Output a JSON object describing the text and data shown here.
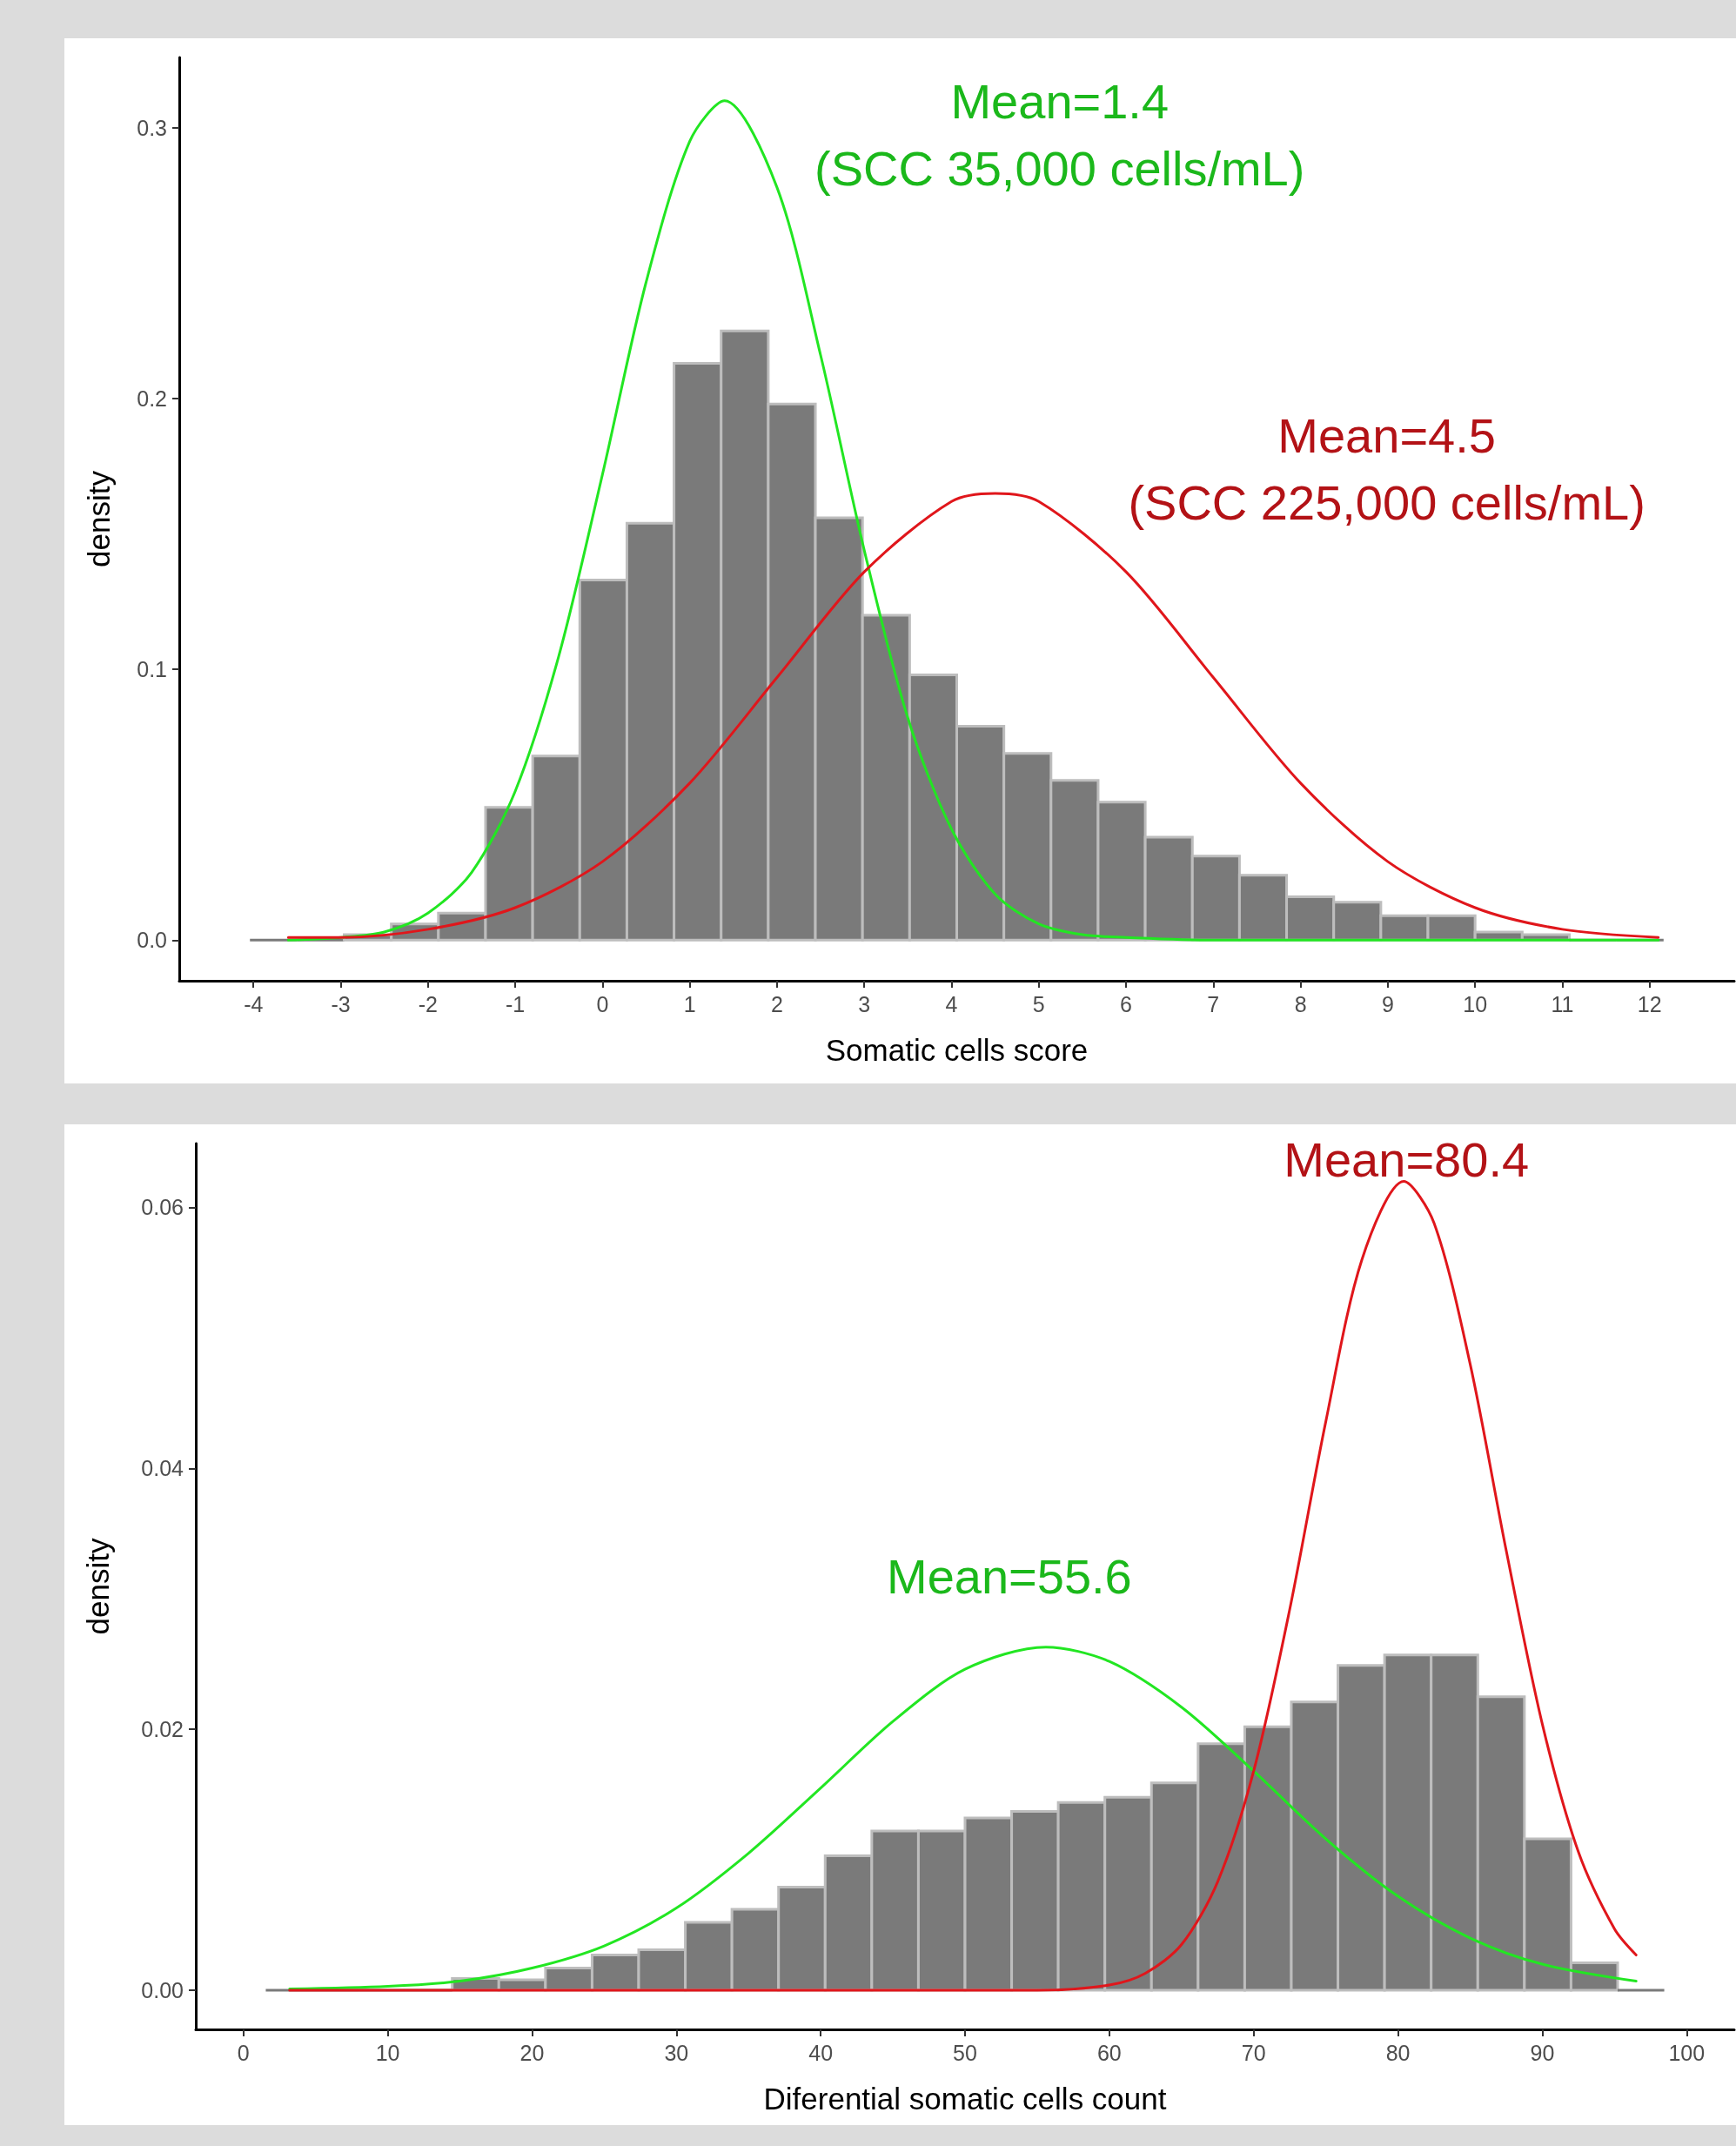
{
  "chart_data": [
    {
      "type": "histogram",
      "xlabel": "Somatic cells score",
      "ylabel": "density",
      "xlim": [
        -4.85,
        12.97
      ],
      "ylim": [
        -0.015,
        0.326
      ],
      "xticks": [
        -4,
        -3,
        -2,
        -1,
        0,
        1,
        2,
        3,
        4,
        5,
        6,
        7,
        8,
        9,
        10,
        11,
        12
      ],
      "yticks": [
        {
          "value": 0,
          "label": "0.0"
        },
        {
          "value": 0.1,
          "label": "0.1"
        },
        {
          "value": 0.2,
          "label": "0.2"
        },
        {
          "value": 0.3,
          "label": "0.3"
        }
      ],
      "series": [
        {
          "color": "#7a7a7a",
          "bins": [
            -4.04,
            -3.5,
            -2.96,
            -2.42,
            -1.88,
            -1.34,
            -0.8,
            -0.26,
            0.28,
            0.82,
            1.36,
            1.9,
            2.44,
            2.98,
            3.52,
            4.06,
            4.6,
            5.14,
            5.68,
            6.22,
            6.76,
            7.3,
            7.84,
            8.38,
            8.92,
            9.46,
            10.0,
            10.54,
            11.08,
            11.62,
            12.16
          ],
          "values": [
            0,
            0,
            0.002,
            0.006,
            0.01,
            0.049,
            0.068,
            0.133,
            0.154,
            0.213,
            0.225,
            0.198,
            0.156,
            0.12,
            0.098,
            0.079,
            0.069,
            0.059,
            0.051,
            0.038,
            0.031,
            0.024,
            0.016,
            0.014,
            0.009,
            0.009,
            0.003,
            0.002,
            0,
            0
          ]
        },
        {
          "type": "line",
          "color": "#22e622",
          "x": [
            -3.6,
            -3,
            -2.5,
            -2,
            -1.5,
            -1,
            -0.5,
            0,
            0.5,
            1,
            1.4,
            2,
            2.5,
            3,
            3.5,
            4,
            4.5,
            5,
            5.5,
            6,
            7,
            8,
            10,
            12.1
          ],
          "values": [
            0,
            0.001,
            0.003,
            0.01,
            0.025,
            0.055,
            0.105,
            0.172,
            0.243,
            0.295,
            0.31,
            0.278,
            0.216,
            0.144,
            0.082,
            0.041,
            0.017,
            0.006,
            0.002,
            0.001,
            0,
            0,
            0,
            0
          ]
        },
        {
          "type": "line",
          "color": "#e0161b",
          "x": [
            -3.6,
            -3,
            -2,
            -1,
            0,
            1,
            2,
            3,
            4,
            4.5,
            5,
            6,
            7,
            8,
            9,
            10,
            11,
            12.1
          ],
          "values": [
            0.001,
            0.001,
            0.004,
            0.012,
            0.029,
            0.058,
            0.097,
            0.136,
            0.162,
            0.165,
            0.162,
            0.136,
            0.097,
            0.058,
            0.029,
            0.012,
            0.004,
            0.001
          ]
        }
      ],
      "annotations": [
        {
          "text": "Mean=1.4\n(SCC 35,000 cells/mL)",
          "x": 1.4,
          "y": 0.31
        },
        {
          "text": "Mean=4.5\n(SCC 225,000 cells/mL)",
          "x": 4.5,
          "y": 0.165
        }
      ]
    },
    {
      "type": "histogram",
      "xlabel": "Diferential somatic cells count",
      "ylabel": "density",
      "xlim": [
        -3.3,
        103.3
      ],
      "ylim": [
        -0.003,
        0.0649
      ],
      "xticks": [
        0,
        10,
        20,
        30,
        40,
        50,
        60,
        70,
        80,
        90,
        100
      ],
      "yticks": [
        {
          "value": 0,
          "label": "0.00"
        },
        {
          "value": 0.02,
          "label": "0.02"
        },
        {
          "value": 0.04,
          "label": "0.04"
        },
        {
          "value": 0.06,
          "label": "0.06"
        }
      ],
      "series": [
        {
          "color": "#7a7a7a",
          "bins": [
            1.55,
            4.78,
            8.01,
            11.24,
            14.47,
            17.7,
            20.93,
            24.16,
            27.39,
            30.62,
            33.85,
            37.08,
            40.31,
            43.54,
            46.77,
            50.0,
            53.23,
            56.46,
            59.69,
            62.92,
            66.15,
            69.38,
            72.61,
            75.84,
            79.07,
            82.3,
            85.53,
            88.76,
            91.99,
            95.22,
            98.45
          ],
          "values": [
            0,
            0,
            0,
            0,
            0.0009,
            0.0008,
            0.0017,
            0.0027,
            0.0031,
            0.0052,
            0.0062,
            0.0079,
            0.0103,
            0.0122,
            0.0122,
            0.0132,
            0.0137,
            0.0144,
            0.0148,
            0.0159,
            0.0189,
            0.0202,
            0.0221,
            0.0249,
            0.0257,
            0.0257,
            0.0225,
            0.0116,
            0.0021,
            0
          ]
        },
        {
          "type": "line",
          "color": "#22e622",
          "x": [
            3.2,
            10,
            15,
            20,
            25,
            30,
            35,
            40,
            45,
            50,
            55.6,
            60,
            65,
            70,
            75,
            80,
            85,
            90,
            96.5
          ],
          "values": [
            0.0001,
            0.0003,
            0.0007,
            0.0017,
            0.0034,
            0.0063,
            0.0105,
            0.0155,
            0.0206,
            0.0246,
            0.0263,
            0.0252,
            0.0217,
            0.0168,
            0.0116,
            0.0072,
            0.004,
            0.002,
            0.0007
          ]
        },
        {
          "type": "line",
          "color": "#e0161b",
          "x": [
            3.2,
            20,
            40,
            50,
            55,
            60,
            62.5,
            65,
            67.5,
            70,
            72.5,
            75,
            77.5,
            80.4,
            82.5,
            85,
            87.5,
            90,
            92.5,
            95,
            96.5
          ],
          "values": [
            0,
            0,
            0,
            0,
            0,
            0.0004,
            0.0013,
            0.0035,
            0.0083,
            0.0168,
            0.0292,
            0.0436,
            0.056,
            0.062,
            0.0588,
            0.048,
            0.0337,
            0.0204,
            0.0106,
            0.0047,
            0.0027
          ]
        }
      ],
      "annotations": [
        {
          "text": "Mean=80.4",
          "x": 80.4,
          "y": 0.062
        },
        {
          "text": "Mean=55.6",
          "x": 55.6,
          "y": 0.0263
        }
      ]
    }
  ]
}
